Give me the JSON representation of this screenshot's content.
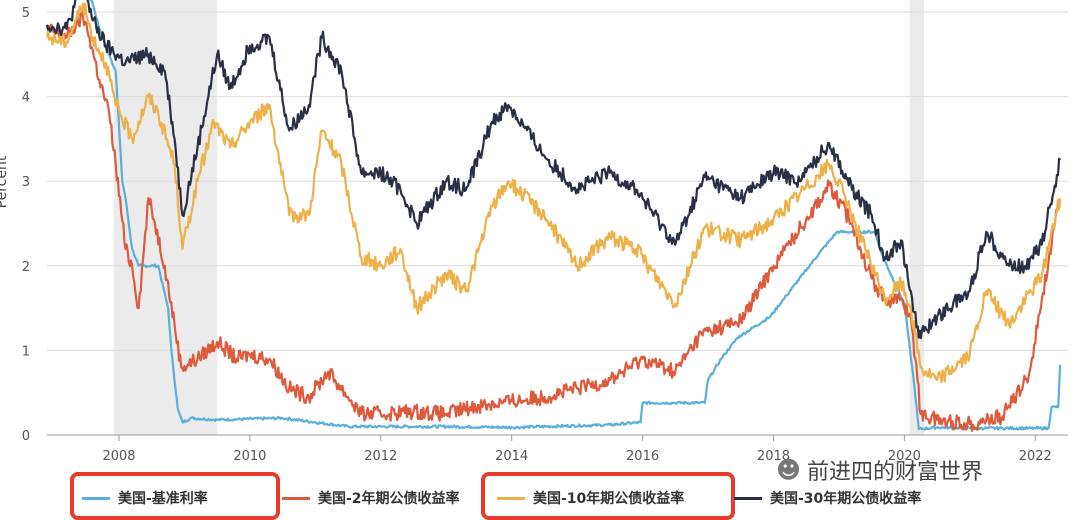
{
  "chart_data": {
    "type": "line",
    "ylabel": "Percent",
    "ylim": [
      0,
      5
    ],
    "y_ticks": [
      "0",
      "1",
      "2",
      "3",
      "4",
      "5"
    ],
    "x_ticks": [
      "2008",
      "2010",
      "2012",
      "2014",
      "2016",
      "2018",
      "2020",
      "2022"
    ],
    "xlim": [
      2006.9,
      2022.5
    ],
    "grid": "horizontal",
    "recessions": [
      [
        2007.92,
        2009.5
      ],
      [
        2020.08,
        2020.3
      ]
    ],
    "series": [
      {
        "name": "美国-基准利率",
        "color": "#5aafd8",
        "x": [
          2006.9,
          2007.5,
          2007.6,
          2007.7,
          2007.8,
          2007.95,
          2008.05,
          2008.1,
          2008.2,
          2008.3,
          2008.6,
          2008.75,
          2008.8,
          2008.9,
          2008.97,
          2009.1,
          2009.5,
          2010.5,
          2011.0,
          2011.5,
          2012.0,
          2013.0,
          2014.0,
          2015.5,
          2015.97,
          2016.0,
          2016.5,
          2016.95,
          2017.0,
          2017.2,
          2017.45,
          2017.95,
          2018.2,
          2018.45,
          2018.7,
          2018.97,
          2019.3,
          2019.55,
          2019.65,
          2019.85,
          2020.0,
          2020.15,
          2020.22,
          2020.5,
          2021.0,
          2021.5,
          2022.0,
          2022.2,
          2022.25,
          2022.35,
          2022.38
        ],
        "values": [
          5.25,
          5.25,
          5.1,
          4.8,
          4.6,
          4.3,
          3.0,
          2.8,
          2.2,
          2.0,
          2.0,
          1.5,
          1.0,
          0.3,
          0.15,
          0.2,
          0.18,
          0.2,
          0.15,
          0.1,
          0.1,
          0.1,
          0.09,
          0.12,
          0.15,
          0.38,
          0.38,
          0.38,
          0.65,
          0.9,
          1.15,
          1.4,
          1.65,
          1.9,
          2.15,
          2.4,
          2.4,
          2.4,
          2.15,
          1.8,
          1.55,
          0.6,
          0.07,
          0.09,
          0.08,
          0.08,
          0.08,
          0.08,
          0.33,
          0.33,
          0.83
        ]
      },
      {
        "name": "美国-2年期公债收益率",
        "color": "#dd5a3c",
        "x": [
          2006.9,
          2007.2,
          2007.45,
          2007.55,
          2007.7,
          2007.85,
          2007.95,
          2008.1,
          2008.2,
          2008.3,
          2008.45,
          2008.55,
          2008.7,
          2008.85,
          2008.95,
          2009.2,
          2009.5,
          2009.8,
          2010.0,
          2010.3,
          2010.6,
          2010.9,
          2011.2,
          2011.5,
          2011.7,
          2012.0,
          2012.5,
          2013.0,
          2013.5,
          2014.0,
          2014.5,
          2015.0,
          2015.5,
          2016.0,
          2016.5,
          2016.9,
          2017.5,
          2018.0,
          2018.5,
          2018.85,
          2019.2,
          2019.5,
          2019.7,
          2019.95,
          2020.1,
          2020.25,
          2020.5,
          2021.0,
          2021.5,
          2021.9,
          2022.1,
          2022.3,
          2022.38
        ],
        "values": [
          4.8,
          4.7,
          4.95,
          4.7,
          4.2,
          3.8,
          3.2,
          2.2,
          2.0,
          1.5,
          2.8,
          2.5,
          2.0,
          1.3,
          0.8,
          0.9,
          1.1,
          0.9,
          0.95,
          0.9,
          0.55,
          0.45,
          0.75,
          0.45,
          0.25,
          0.25,
          0.28,
          0.25,
          0.35,
          0.4,
          0.45,
          0.55,
          0.65,
          0.9,
          0.75,
          1.2,
          1.35,
          2.0,
          2.55,
          2.95,
          2.5,
          1.85,
          1.6,
          1.6,
          1.4,
          0.25,
          0.18,
          0.13,
          0.22,
          0.7,
          1.6,
          2.5,
          2.75
        ]
      },
      {
        "name": "美国-10年期公债收益率",
        "color": "#eeb14a",
        "x": [
          2006.9,
          2007.2,
          2007.45,
          2007.6,
          2007.8,
          2007.95,
          2008.2,
          2008.45,
          2008.6,
          2008.85,
          2008.97,
          2009.2,
          2009.45,
          2009.7,
          2010.0,
          2010.3,
          2010.6,
          2010.9,
          2011.1,
          2011.4,
          2011.7,
          2012.0,
          2012.3,
          2012.55,
          2013.0,
          2013.3,
          2013.7,
          2013.95,
          2014.5,
          2015.0,
          2015.5,
          2015.9,
          2016.5,
          2016.95,
          2017.5,
          2018.0,
          2018.4,
          2018.85,
          2019.1,
          2019.4,
          2019.7,
          2019.95,
          2020.1,
          2020.25,
          2020.5,
          2021.0,
          2021.25,
          2021.6,
          2021.85,
          2022.1,
          2022.38
        ],
        "values": [
          4.7,
          4.65,
          5.1,
          4.7,
          4.4,
          3.9,
          3.5,
          4.0,
          3.8,
          3.2,
          2.2,
          3.0,
          3.7,
          3.4,
          3.7,
          3.9,
          2.6,
          2.6,
          3.6,
          3.2,
          2.1,
          2.0,
          2.2,
          1.5,
          1.9,
          1.7,
          2.7,
          3.0,
          2.6,
          2.0,
          2.35,
          2.2,
          1.55,
          2.45,
          2.3,
          2.55,
          2.85,
          3.2,
          2.8,
          2.2,
          1.6,
          1.8,
          1.5,
          0.8,
          0.65,
          0.95,
          1.7,
          1.3,
          1.6,
          1.9,
          2.8
        ]
      },
      {
        "name": "美国-30年期公债收益率",
        "color": "#2a2f45",
        "x": [
          2006.9,
          2007.2,
          2007.45,
          2007.6,
          2007.8,
          2008.1,
          2008.45,
          2008.7,
          2008.85,
          2008.97,
          2009.2,
          2009.5,
          2009.7,
          2010.0,
          2010.3,
          2010.6,
          2010.9,
          2011.1,
          2011.4,
          2011.7,
          2012.0,
          2012.3,
          2012.55,
          2013.0,
          2013.3,
          2013.7,
          2013.95,
          2014.5,
          2015.0,
          2015.5,
          2015.9,
          2016.5,
          2016.95,
          2017.5,
          2018.0,
          2018.4,
          2018.85,
          2019.2,
          2019.5,
          2019.7,
          2019.95,
          2020.1,
          2020.22,
          2020.5,
          2021.0,
          2021.25,
          2021.6,
          2021.85,
          2022.1,
          2022.38
        ],
        "values": [
          4.85,
          4.8,
          5.35,
          4.9,
          4.6,
          4.4,
          4.5,
          4.3,
          3.5,
          2.6,
          3.4,
          4.5,
          4.1,
          4.6,
          4.7,
          3.6,
          3.9,
          4.7,
          4.3,
          3.1,
          3.1,
          2.9,
          2.5,
          3.0,
          2.9,
          3.7,
          3.9,
          3.3,
          2.9,
          3.1,
          2.9,
          2.25,
          3.05,
          2.8,
          3.1,
          3.0,
          3.45,
          2.9,
          2.6,
          2.1,
          2.3,
          1.7,
          1.15,
          1.4,
          1.7,
          2.4,
          2.0,
          2.0,
          2.25,
          3.25
        ]
      }
    ],
    "legend_position": "bottom"
  },
  "watermark": {
    "text": "前进四的财富世界",
    "icon": "wechat-icon"
  },
  "highlighted_series": [
    "美国-基准利率",
    "美国-10年期公债收益率"
  ]
}
